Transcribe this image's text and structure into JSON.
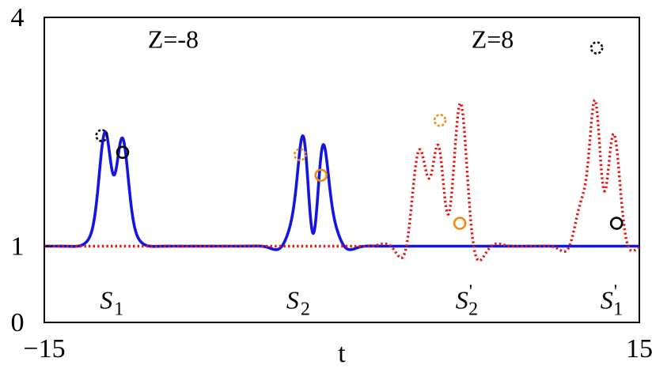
{
  "chart_data": {
    "type": "line",
    "xlabel": "t",
    "ylabel": "",
    "xlim": [
      -15,
      15
    ],
    "ylim": [
      0,
      4
    ],
    "x_ticks": [
      {
        "value": -15,
        "label": "−15"
      },
      {
        "value": 15,
        "label": "15"
      }
    ],
    "y_ticks": [
      {
        "value": 0,
        "label": "0"
      },
      {
        "value": 1,
        "label": "1"
      },
      {
        "value": 4,
        "label": "4"
      }
    ],
    "annotations": [
      {
        "text": "Z=-8",
        "x": -8.5,
        "y": 3.6
      },
      {
        "text": "Z=8",
        "x": 7.6,
        "y": 3.6
      }
    ],
    "soliton_labels": [
      {
        "name": "S",
        "sub": "1",
        "prime": "",
        "x": -11.6,
        "y": 0.18
      },
      {
        "name": "S",
        "sub": "2",
        "prime": "",
        "x": -2.2,
        "y": 0.18
      },
      {
        "name": "S",
        "sub": "2",
        "prime": "'",
        "x": 6.3,
        "y": 0.18
      },
      {
        "name": "S",
        "sub": "1",
        "prime": "'",
        "x": 13.6,
        "y": 0.18
      }
    ],
    "series": [
      {
        "style": "solid",
        "color": "#1515e0",
        "domain": [
          -15,
          15
        ],
        "baseline": 1,
        "pulses": [
          {
            "center": -11.9,
            "sigma": 0.3,
            "amplitude": 1.6
          },
          {
            "center": -11.1,
            "sigma": 0.3,
            "amplitude": 1.52
          },
          {
            "center": -1.9,
            "sigma": 0.27,
            "amplitude": 1.5
          },
          {
            "center": -1.0,
            "sigma": 0.27,
            "amplitude": 1.38
          }
        ],
        "ripples": [
          {
            "center": -11.5,
            "width": 1.0,
            "amplitude": -0.35,
            "freq": 2.6
          },
          {
            "center": -1.45,
            "width": 1.25,
            "amplitude": -0.55,
            "freq": 3.0
          }
        ]
      },
      {
        "style": "dotted",
        "color": "#e01818",
        "domain": [
          -15,
          15
        ],
        "baseline": 1,
        "pulses": [
          {
            "center": 4.9,
            "sigma": 0.3,
            "amplitude": 2.15
          },
          {
            "center": 6.0,
            "sigma": 0.3,
            "amplitude": 1.26
          },
          {
            "center": 3.8,
            "sigma": 0.32,
            "amplitude": 0.75
          },
          {
            "center": 12.8,
            "sigma": 0.28,
            "amplitude": 2.8
          },
          {
            "center": 13.7,
            "sigma": 0.3,
            "amplitude": 0.95
          }
        ],
        "ripples": [
          {
            "center": 5.0,
            "width": 1.6,
            "amplitude": -0.9,
            "freq": 3.1
          },
          {
            "center": 12.9,
            "width": 1.1,
            "amplitude": -0.98,
            "freq": 3.3
          }
        ]
      }
    ],
    "peak_markers": [
      {
        "x": -12.1,
        "y": 2.45,
        "color": "#000000",
        "style": "dotted"
      },
      {
        "x": -11.05,
        "y": 2.23,
        "color": "#000000",
        "style": "solid"
      },
      {
        "x": -2.1,
        "y": 2.2,
        "color": "#f08a10",
        "style": "dotted"
      },
      {
        "x": -1.05,
        "y": 1.93,
        "color": "#f08a10",
        "style": "solid"
      },
      {
        "x": 4.95,
        "y": 2.65,
        "color": "#f08a10",
        "style": "dotted"
      },
      {
        "x": 5.95,
        "y": 1.3,
        "color": "#f08a10",
        "style": "solid"
      },
      {
        "x": 12.85,
        "y": 3.6,
        "color": "#000000",
        "style": "dotted"
      },
      {
        "x": 13.85,
        "y": 1.3,
        "color": "#000000",
        "style": "solid"
      }
    ]
  }
}
